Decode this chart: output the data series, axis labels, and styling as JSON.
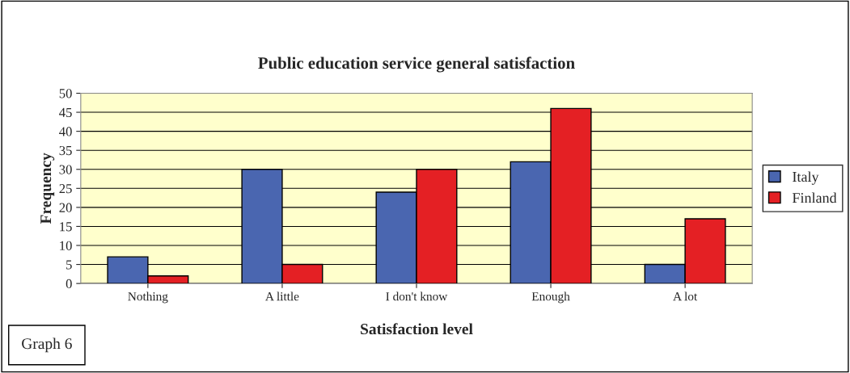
{
  "chart_data": {
    "type": "bar",
    "title": "Public education service general satisfaction",
    "xlabel": "Satisfaction level",
    "ylabel": "Frequency",
    "categories": [
      "Nothing",
      "A little",
      "I don't know",
      "Enough",
      "A lot"
    ],
    "series": [
      {
        "name": "Italy",
        "color": "#4a66b0",
        "values": [
          7,
          30,
          24,
          32,
          5
        ]
      },
      {
        "name": "Finland",
        "color": "#e42024",
        "values": [
          2,
          5,
          30,
          46,
          17
        ]
      }
    ],
    "ylim": [
      0,
      50
    ],
    "yticks": [
      0,
      5,
      10,
      15,
      20,
      25,
      30,
      35,
      40,
      45,
      50
    ],
    "grid": "y",
    "legend": "right",
    "annotations": [
      "Graph 6"
    ]
  }
}
